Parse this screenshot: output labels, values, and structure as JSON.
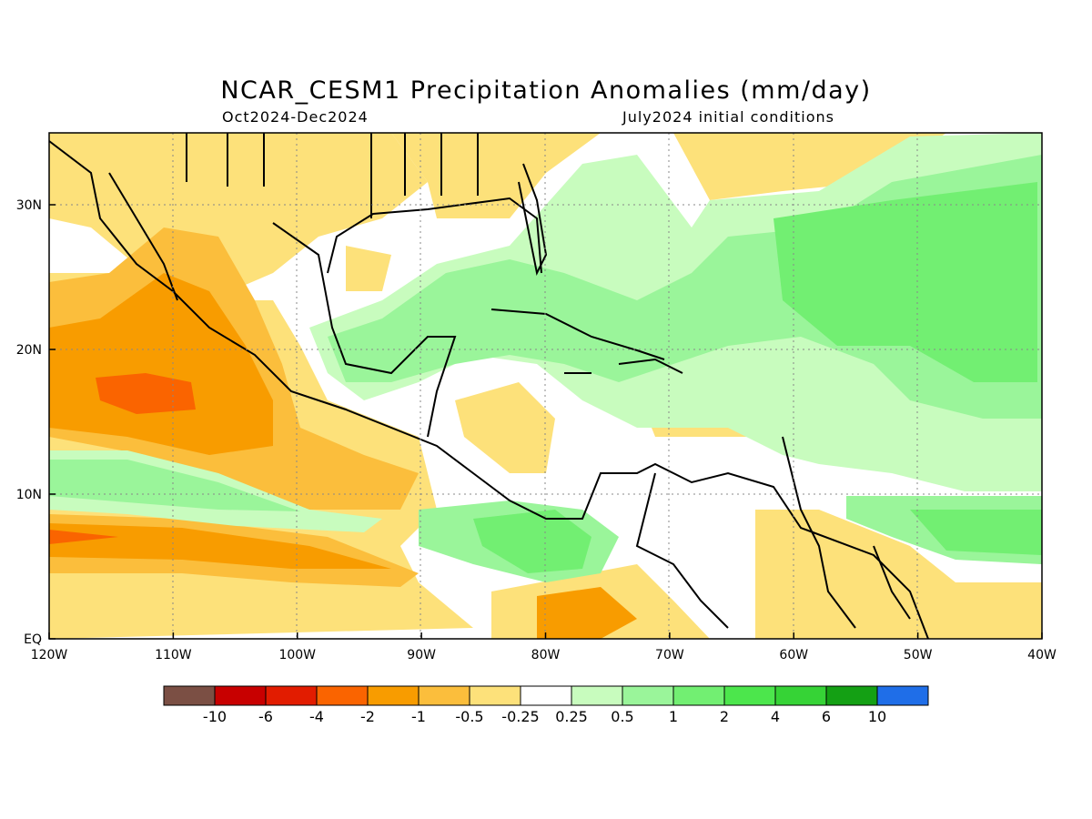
{
  "title": "NCAR_CESM1 Precipitation Anomalies (mm/day)",
  "subtitle_left": "Oct2024-Dec2024",
  "subtitle_right": "July2024 initial conditions",
  "map": {
    "lon_ticks": [
      "120W",
      "110W",
      "100W",
      "90W",
      "80W",
      "70W",
      "60W",
      "50W",
      "40W"
    ],
    "lat_ticks": [
      "EQ",
      "10N",
      "20N",
      "30N"
    ],
    "grid": "dotted"
  },
  "colorbar": {
    "colors": [
      "#7b4f44",
      "#c80000",
      "#e21c00",
      "#fa6400",
      "#f89c00",
      "#fbbe3c",
      "#fde17a",
      "#ffffff",
      "#c8fcbe",
      "#9af59a",
      "#72ef72",
      "#4ce64c",
      "#36d336",
      "#14a014",
      "#1f6ee8"
    ],
    "labels": [
      "-10",
      "-6",
      "-4",
      "-2",
      "-1",
      "-0.5",
      "-0.25",
      "0.25",
      "0.5",
      "1",
      "2",
      "4",
      "6",
      "10"
    ]
  }
}
